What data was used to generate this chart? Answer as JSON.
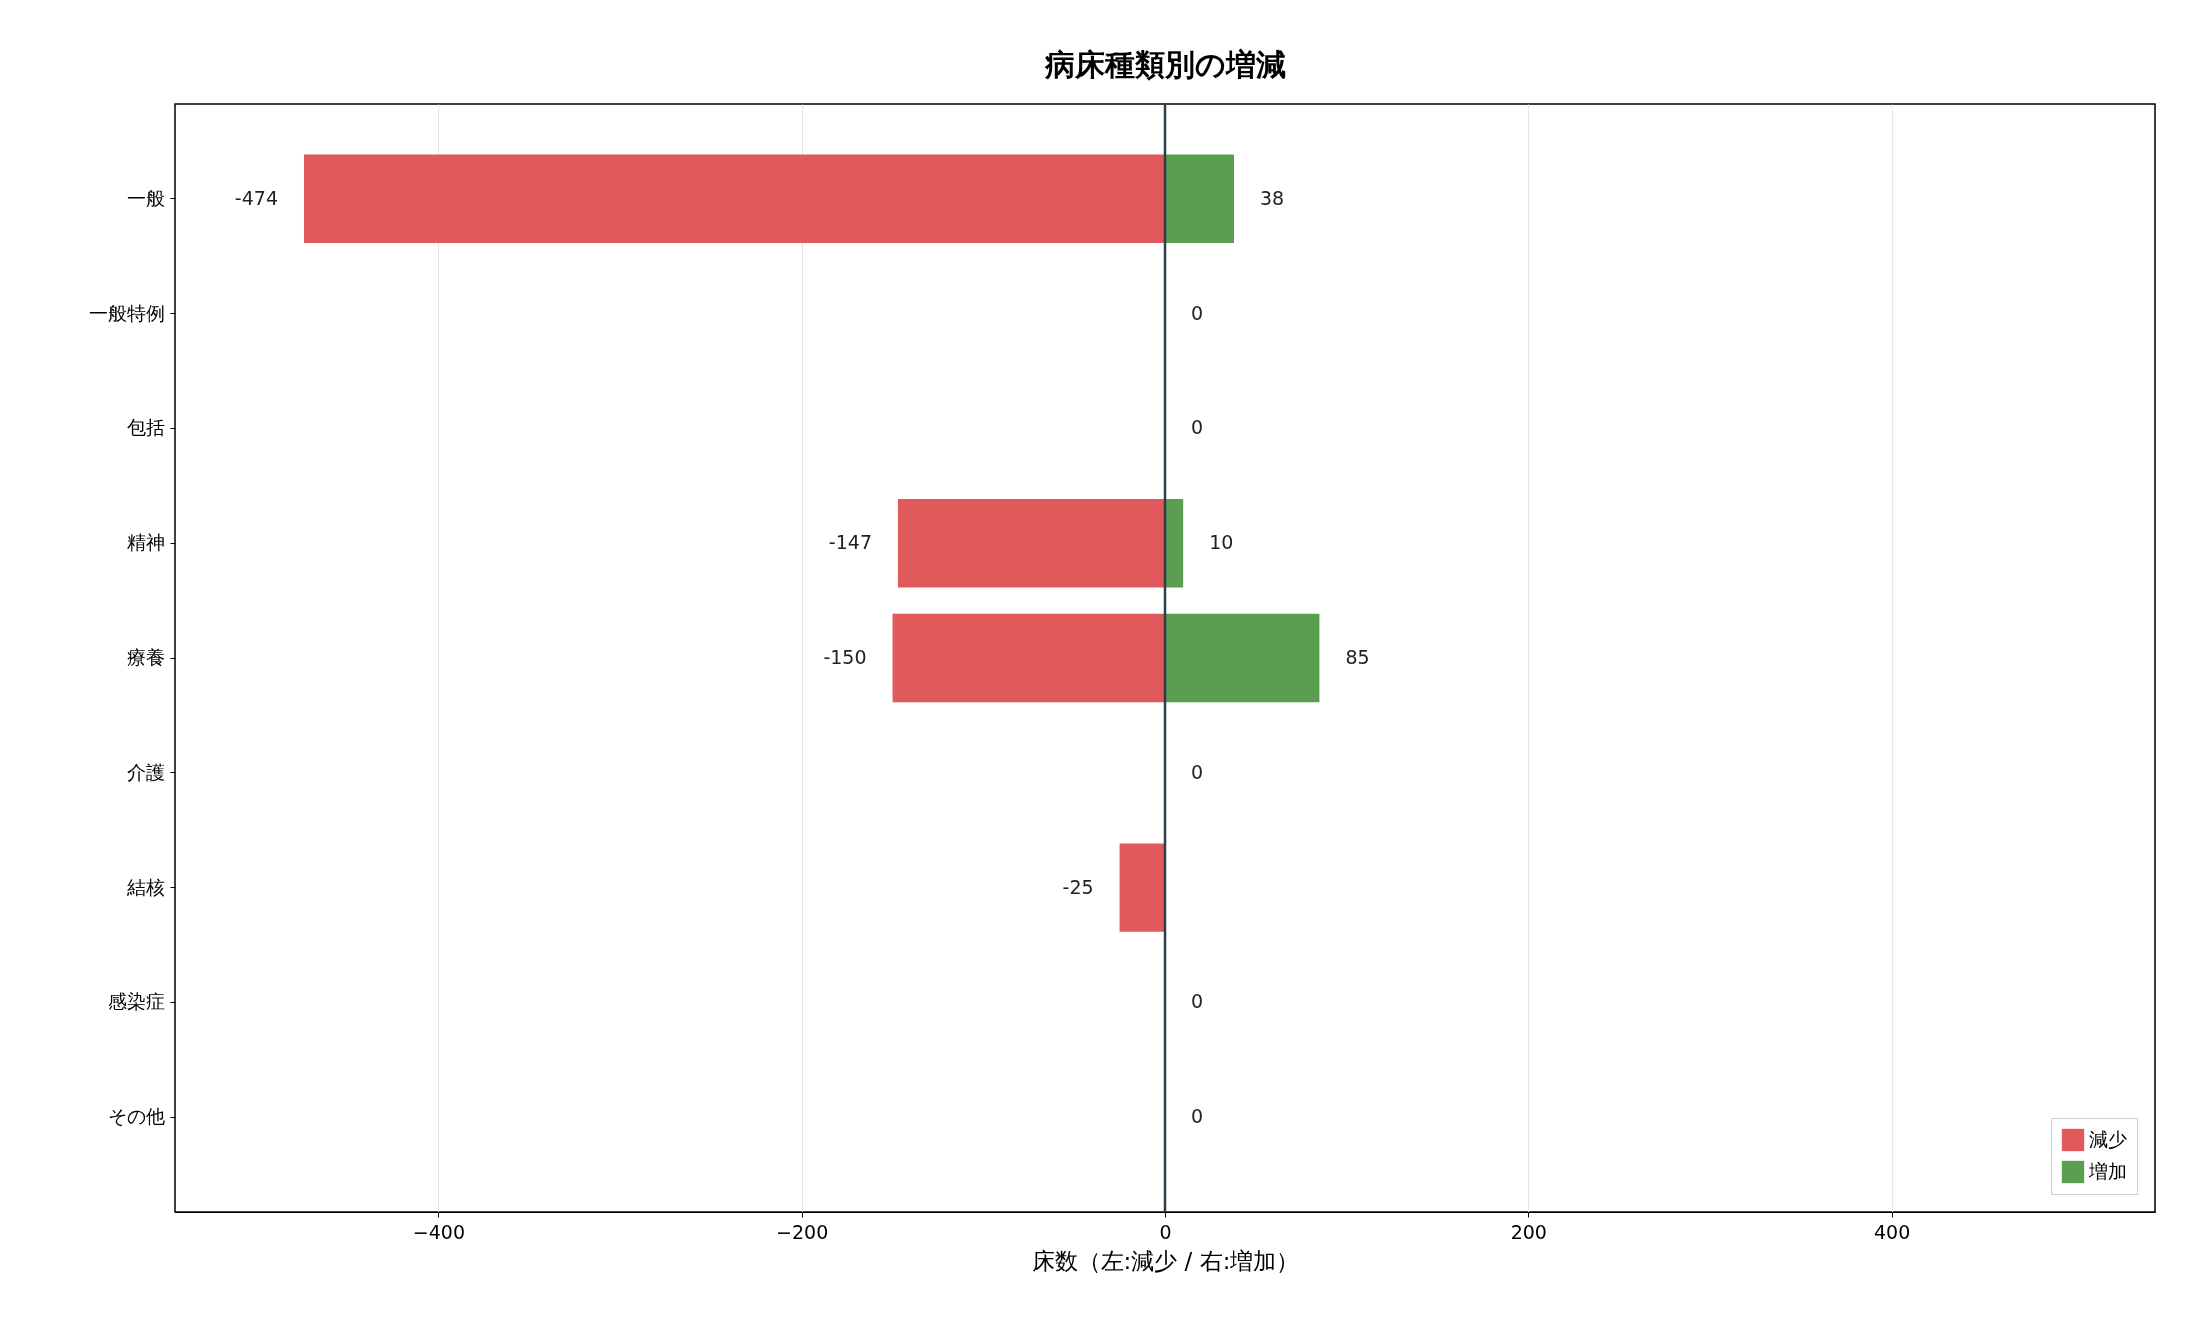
{
  "chart_data": {
    "type": "bar",
    "orientation": "horizontal",
    "title": "病床種類別の増減",
    "xlabel": "床数（左:減少 / 右:増加）",
    "categories": [
      "一般",
      "一般特例",
      "包括",
      "精神",
      "療養",
      "介護",
      "結核",
      "感染症",
      "その他"
    ],
    "series": [
      {
        "name": "減少",
        "color": "#e05a5c",
        "values": [
          -474,
          0,
          0,
          -147,
          -150,
          0,
          -25,
          0,
          0
        ],
        "value_labels": [
          "-474",
          null,
          null,
          "-147",
          "-150",
          null,
          "-25",
          null,
          null
        ]
      },
      {
        "name": "増加",
        "color": "#5a9e4f",
        "values": [
          38,
          0,
          0,
          10,
          85,
          0,
          0,
          0,
          0
        ],
        "value_labels": [
          "38",
          "0",
          "0",
          "10",
          "85",
          "0",
          null,
          "0",
          "0"
        ]
      }
    ],
    "xlim": [
      -545,
      545
    ],
    "xticks": [
      -400,
      -200,
      0,
      200,
      400
    ],
    "grid": "x",
    "legend": "bottom right",
    "ref_lines": [
      {
        "axis": "x",
        "value": 0,
        "color": "#2f3e46"
      }
    ]
  }
}
